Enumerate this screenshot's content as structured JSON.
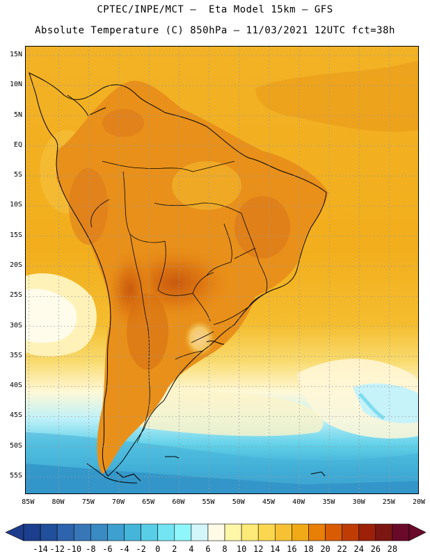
{
  "header": {
    "line1": "CPTEC/INPE/MCT –  Eta Model 15km – GFS",
    "line2": "Absolute Temperature (C) 850hPa – 11/03/2021 12UTC fct=38h"
  },
  "map": {
    "lat_labels": [
      "15N",
      "10N",
      "5N",
      "EQ",
      "5S",
      "10S",
      "15S",
      "20S",
      "25S",
      "30S",
      "35S",
      "40S",
      "45S",
      "50S",
      "55S"
    ],
    "lat_values": [
      15,
      10,
      5,
      0,
      -5,
      -10,
      -15,
      -20,
      -25,
      -30,
      -35,
      -40,
      -45,
      -50,
      -55
    ],
    "lon_labels": [
      "85W",
      "80W",
      "75W",
      "70W",
      "65W",
      "60W",
      "55W",
      "50W",
      "45W",
      "40W",
      "35W",
      "30W",
      "25W",
      "20W"
    ],
    "lon_values": [
      -85,
      -80,
      -75,
      -70,
      -65,
      -60,
      -55,
      -50,
      -45,
      -40,
      -35,
      -30,
      -25,
      -20
    ],
    "extent": {
      "lon_min": -85.5,
      "lon_max": -20,
      "lat_min": -58,
      "lat_max": 16.5
    }
  },
  "colorbar": {
    "labels": [
      "-14",
      "-12",
      "-10",
      "-8",
      "-6",
      "-4",
      "-2",
      "0",
      "2",
      "4",
      "6",
      "8",
      "10",
      "12",
      "14",
      "16",
      "18",
      "20",
      "22",
      "24",
      "26",
      "28"
    ],
    "colors": [
      "#1b3f8c",
      "#214f9b",
      "#2d64ad",
      "#3777b8",
      "#3a8ac3",
      "#3da0cf",
      "#45b6da",
      "#58cfe6",
      "#72e4f2",
      "#8ff7fb",
      "#d4f6fb",
      "#fffbe6",
      "#fff7a8",
      "#fdea78",
      "#fbd750",
      "#f6c233",
      "#f1aa17",
      "#e97f07",
      "#d95c05",
      "#bf3d05",
      "#9c2108",
      "#7c1612",
      "#6a0a2a"
    ],
    "underflow_color": "#1e3c8c",
    "overflow_color": "#6a0a2a"
  }
}
